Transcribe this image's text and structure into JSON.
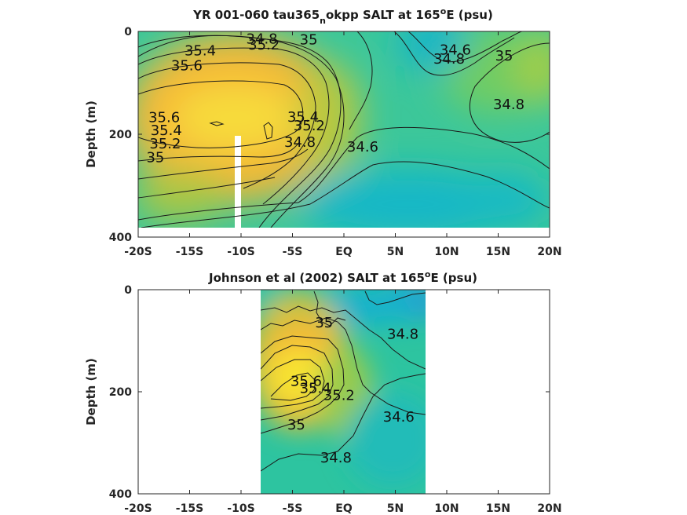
{
  "chart_data": [
    {
      "type": "contour",
      "title": "YR 001-060 tau365_nokpp SALT at 165°E (psu)",
      "title_parts": {
        "main": "YR 001-060 tau365",
        "sub": "n",
        "mid": "okpp SALT at 165",
        "sup": "o",
        "tail": "E (psu)"
      },
      "ylabel": "Depth (m)",
      "xlim": [
        -20,
        20
      ],
      "ylim": [
        400,
        0
      ],
      "xticks": [
        -20,
        -15,
        -10,
        -5,
        0,
        5,
        10,
        15,
        20
      ],
      "xticklabels": [
        "-20S",
        "-15S",
        "-10S",
        "-5S",
        "EQ",
        "5N",
        "10N",
        "15N",
        "20N"
      ],
      "yticks": [
        0,
        200,
        400
      ],
      "yticklabels": [
        "0",
        "200",
        "400"
      ],
      "data_extent": {
        "lat": [
          -20,
          20
        ],
        "depth": [
          0,
          380
        ]
      },
      "missing_column": {
        "lat": [
          -10.3,
          -9.8
        ],
        "depth": [
          205,
          380
        ]
      },
      "colormap": [
        "#3b8fe0",
        "#13b9c6",
        "#33c79c",
        "#8fce52",
        "#dcc13a",
        "#f8ba3a",
        "#f7e432"
      ],
      "contour_levels": [
        34.6,
        34.8,
        35.0,
        35.2,
        35.4,
        35.6
      ],
      "contour_labels": [
        {
          "text": "34.8",
          "lat": -9.5,
          "depth": 5
        },
        {
          "text": "35",
          "lat": -4.3,
          "depth": 7
        },
        {
          "text": "35.2",
          "lat": -9.3,
          "depth": 17
        },
        {
          "text": "35.4",
          "lat": -15.5,
          "depth": 28
        },
        {
          "text": "35.6",
          "lat": -16.8,
          "depth": 57
        },
        {
          "text": "34.6",
          "lat": 9.3,
          "depth": 27
        },
        {
          "text": "34.8",
          "lat": 8.7,
          "depth": 44
        },
        {
          "text": "35",
          "lat": 14.7,
          "depth": 38
        },
        {
          "text": "35.6",
          "lat": -19.0,
          "depth": 158
        },
        {
          "text": "35.4",
          "lat": -18.8,
          "depth": 183
        },
        {
          "text": "35.2",
          "lat": -18.9,
          "depth": 209
        },
        {
          "text": "35",
          "lat": -19.2,
          "depth": 236
        },
        {
          "text": "35.4",
          "lat": -5.5,
          "depth": 157
        },
        {
          "text": "35.2",
          "lat": -4.9,
          "depth": 174
        },
        {
          "text": "34.8",
          "lat": -5.8,
          "depth": 206
        },
        {
          "text": "34.6",
          "lat": 0.3,
          "depth": 215
        },
        {
          "text": "34.8",
          "lat": 14.5,
          "depth": 133
        }
      ]
    },
    {
      "type": "contour",
      "title": "Johnson et al (2002) SALT at 165°E (psu)",
      "title_parts": {
        "main": "Johnson et al (2002) SALT at 165",
        "sup": "o",
        "tail": "E (psu)"
      },
      "ylabel": "Depth (m)",
      "xlim": [
        -20,
        20
      ],
      "ylim": [
        400,
        0
      ],
      "xticks": [
        -20,
        -15,
        -10,
        -5,
        0,
        5,
        10,
        15,
        20
      ],
      "xticklabels": [
        "-20S",
        "-15S",
        "-10S",
        "-5S",
        "EQ",
        "5N",
        "10N",
        "15N",
        "20N"
      ],
      "yticks": [
        0,
        200,
        400
      ],
      "yticklabels": [
        "0",
        "200",
        "400"
      ],
      "data_extent": {
        "lat": [
          -8,
          8
        ],
        "depth": [
          0,
          400
        ]
      },
      "colormap": [
        "#3b8fe0",
        "#13b9c6",
        "#33c79c",
        "#8fce52",
        "#dcc13a",
        "#f8ba3a",
        "#f7e432"
      ],
      "contour_levels": [
        34.6,
        34.8,
        35.0,
        35.2,
        35.4,
        35.6
      ],
      "contour_labels": [
        {
          "text": "35",
          "lat": -2.8,
          "depth": 55
        },
        {
          "text": "34.8",
          "lat": 4.2,
          "depth": 78
        },
        {
          "text": "35.6",
          "lat": -5.2,
          "depth": 170
        },
        {
          "text": "35.4",
          "lat": -4.3,
          "depth": 184
        },
        {
          "text": "35.2",
          "lat": -2.0,
          "depth": 198
        },
        {
          "text": "34.6",
          "lat": 3.8,
          "depth": 240
        },
        {
          "text": "35",
          "lat": -5.5,
          "depth": 255
        },
        {
          "text": "34.8",
          "lat": -2.3,
          "depth": 320
        }
      ]
    }
  ]
}
